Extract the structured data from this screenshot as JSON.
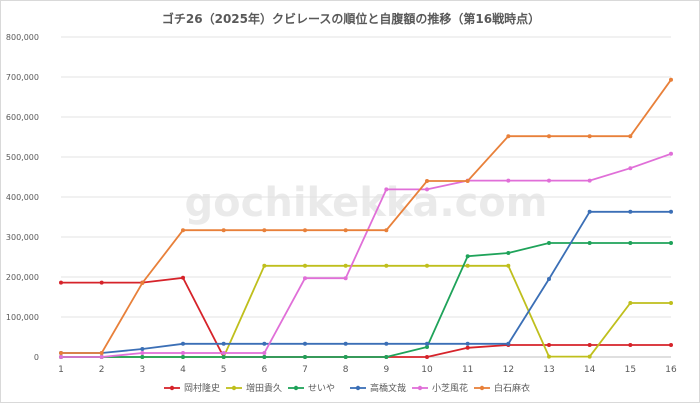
{
  "chart_data": {
    "type": "line",
    "title": "ゴチ26（2025年）クビレースの順位と自腹額の推移（第16戦時点）",
    "x": [
      1,
      2,
      3,
      4,
      5,
      6,
      7,
      8,
      9,
      10,
      11,
      12,
      13,
      14,
      15,
      16
    ],
    "ylim": [
      0,
      800000
    ],
    "yticks": [
      0,
      100000,
      200000,
      300000,
      400000,
      500000,
      600000,
      700000,
      800000
    ],
    "ytick_labels": [
      "0",
      "100,000",
      "200,000",
      "300,000",
      "400,000",
      "500,000",
      "600,000",
      "700,000",
      "800,000"
    ],
    "grid": true,
    "legend_position": "bottom",
    "watermark": "gochikekka.com",
    "series": [
      {
        "name": "岡村隆史",
        "color": "#d6232a",
        "values": [
          186000,
          186000,
          186000,
          198000,
          0,
          0,
          0,
          0,
          0,
          0,
          23000,
          30000,
          30000,
          30000,
          30000,
          30000
        ]
      },
      {
        "name": "増田貴久",
        "color": "#bfbf1d",
        "values": [
          0,
          0,
          0,
          0,
          0,
          228000,
          228000,
          228000,
          228000,
          228000,
          228000,
          228000,
          1000,
          1000,
          135000,
          135000
        ]
      },
      {
        "name": "せいや",
        "color": "#1fa35a",
        "values": [
          0,
          0,
          0,
          0,
          0,
          0,
          0,
          0,
          0,
          25000,
          252000,
          260000,
          285000,
          285000,
          285000,
          285000
        ]
      },
      {
        "name": "高橋文哉",
        "color": "#3b6fb6",
        "values": [
          10000,
          10000,
          20000,
          33000,
          33000,
          33000,
          33000,
          33000,
          33000,
          33000,
          33000,
          33000,
          195000,
          363000,
          363000,
          363000
        ]
      },
      {
        "name": "小芝風花",
        "color": "#e06fd8",
        "values": [
          0,
          0,
          10000,
          10000,
          10000,
          10000,
          197000,
          197000,
          419000,
          419000,
          441000,
          441000,
          441000,
          441000,
          472000,
          508000
        ]
      },
      {
        "name": "白石麻衣",
        "color": "#e8803a",
        "values": [
          10000,
          10000,
          185000,
          317000,
          317000,
          317000,
          317000,
          317000,
          317000,
          440000,
          440000,
          552000,
          552000,
          552000,
          552000,
          693000
        ]
      }
    ]
  }
}
